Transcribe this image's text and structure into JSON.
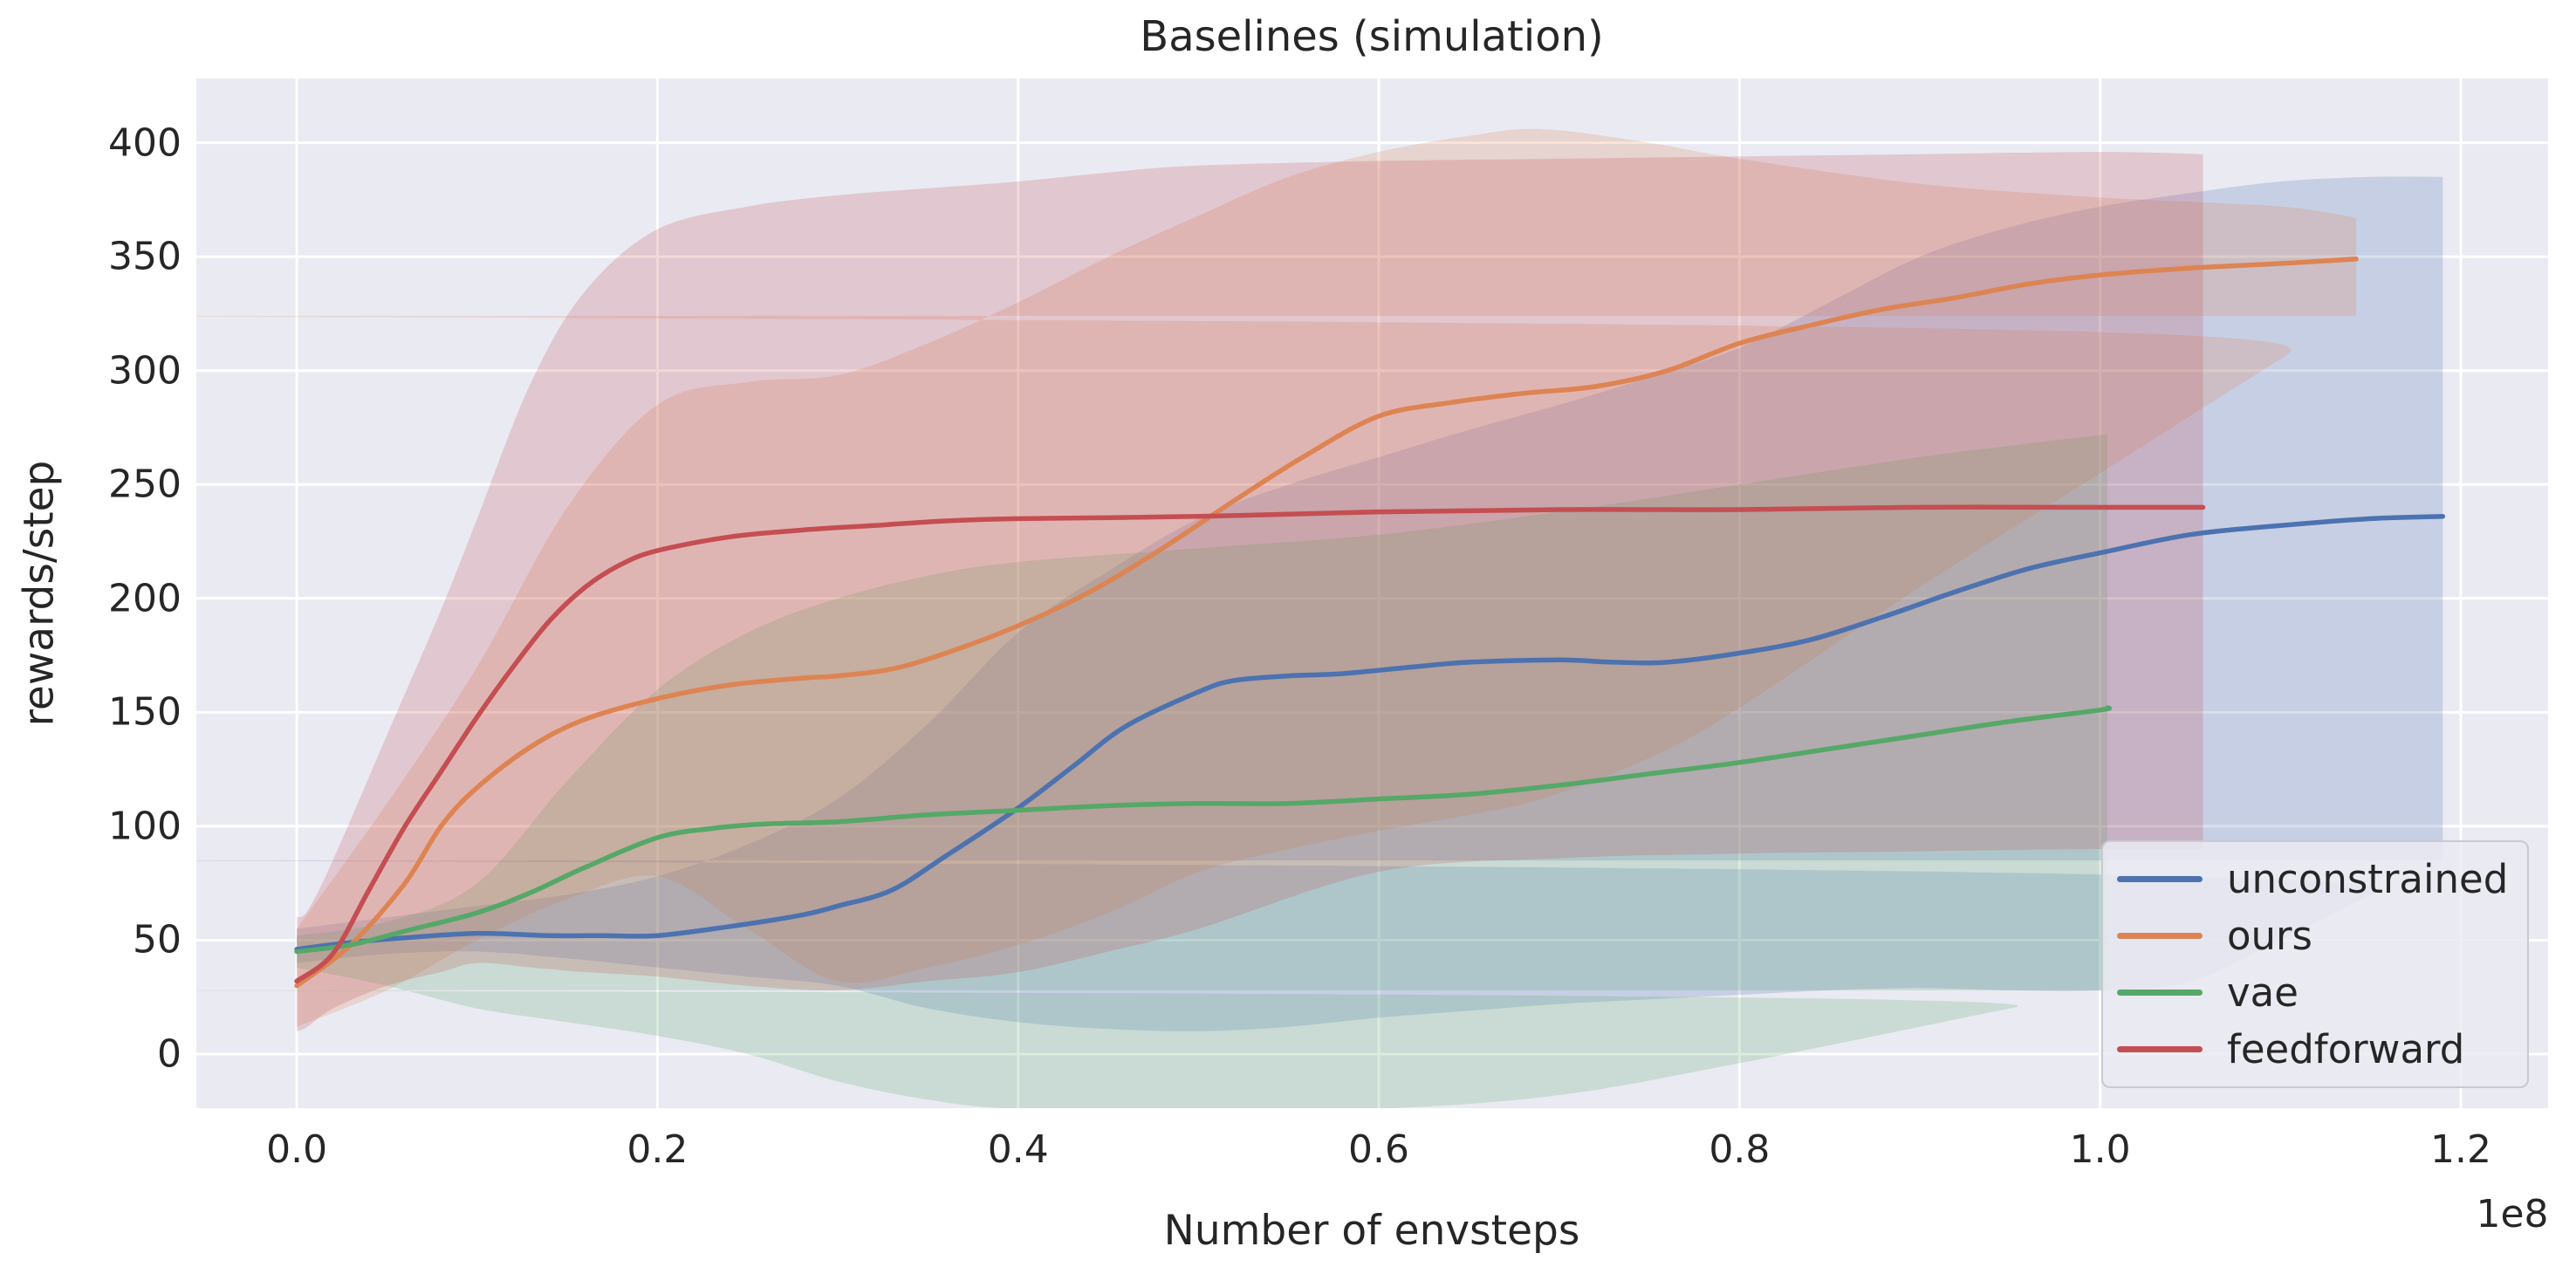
{
  "figure": {
    "title": "Baselines (simulation)",
    "background": "#ffffff"
  },
  "axes": {
    "xlabel": "Number of envsteps",
    "ylabel": "rewards/step",
    "offset_text": "1e8",
    "background_color": "#eaeaf2",
    "grid_color": "#ffffff",
    "text_color": "#262626",
    "xtick_labels": [
      "0.0",
      "0.2",
      "0.4",
      "0.6",
      "0.8",
      "1.0",
      "1.2"
    ],
    "ytick_labels": [
      "0",
      "50",
      "100",
      "150",
      "200",
      "250",
      "300",
      "350",
      "400"
    ]
  },
  "legend": {
    "position": "lower right",
    "items": [
      {
        "label": "unconstrained",
        "color": "#4c72b0"
      },
      {
        "label": "ours",
        "color": "#dd8452"
      },
      {
        "label": "vae",
        "color": "#55a868"
      },
      {
        "label": "feedforward",
        "color": "#c44e52"
      }
    ]
  },
  "chart_data": {
    "type": "line",
    "title": "Baselines (simulation)",
    "xlabel": "Number of envsteps",
    "ylabel": "rewards/step",
    "x_scale_factor": "1e8",
    "xlim": [
      -0.0557,
      1.2484
    ],
    "ylim": [
      -23.75,
      428.2
    ],
    "xticks": [
      0.0,
      0.2,
      0.4,
      0.6,
      0.8,
      1.0,
      1.2
    ],
    "yticks": [
      0,
      50,
      100,
      150,
      200,
      250,
      300,
      350,
      400
    ],
    "grid": true,
    "band_alpha": 0.22,
    "line_width": 5.5,
    "series": [
      {
        "name": "unconstrained",
        "color": "#4c72b0",
        "points": [
          [
            0,
            46
          ],
          [
            0.03,
            49
          ],
          [
            0.06,
            51
          ],
          [
            0.1,
            53
          ],
          [
            0.14,
            52
          ],
          [
            0.17,
            52
          ],
          [
            0.2,
            52
          ],
          [
            0.24,
            56
          ],
          [
            0.28,
            61
          ],
          [
            0.3,
            65
          ],
          [
            0.33,
            72
          ],
          [
            0.36,
            87
          ],
          [
            0.4,
            108
          ],
          [
            0.43,
            126
          ],
          [
            0.46,
            144
          ],
          [
            0.5,
            159
          ],
          [
            0.52,
            164
          ],
          [
            0.55,
            166
          ],
          [
            0.58,
            167
          ],
          [
            0.62,
            170
          ],
          [
            0.65,
            172
          ],
          [
            0.7,
            173
          ],
          [
            0.73,
            172
          ],
          [
            0.76,
            172
          ],
          [
            0.8,
            176
          ],
          [
            0.84,
            182
          ],
          [
            0.88,
            192
          ],
          [
            0.92,
            203
          ],
          [
            0.96,
            213
          ],
          [
            1.0,
            220
          ],
          [
            1.05,
            228
          ],
          [
            1.1,
            232
          ],
          [
            1.15,
            235
          ],
          [
            1.19,
            236
          ]
        ],
        "band": {
          "x": [
            0,
            0.05,
            0.1,
            0.15,
            0.2,
            0.25,
            0.3,
            0.35,
            0.4,
            0.45,
            0.5,
            0.55,
            0.6,
            0.65,
            0.7,
            0.75,
            0.8,
            0.85,
            0.9,
            0.95,
            1.0,
            1.05,
            1.1,
            1.15,
            1.19
          ],
          "upper": [
            55,
            60,
            65,
            70,
            78,
            92,
            112,
            145,
            185,
            212,
            235,
            250,
            262,
            274,
            285,
            297,
            310,
            330,
            350,
            363,
            372,
            378,
            383,
            385,
            385
          ],
          "lower": [
            40,
            44,
            45,
            42,
            38,
            34,
            30,
            20,
            14,
            11,
            10,
            12,
            16,
            19,
            22,
            24,
            26,
            28,
            29,
            28,
            28,
            32,
            50,
            70,
            85
          ]
        }
      },
      {
        "name": "ours",
        "color": "#dd8452",
        "points": [
          [
            0,
            30
          ],
          [
            0.03,
            48
          ],
          [
            0.06,
            75
          ],
          [
            0.08,
            100
          ],
          [
            0.1,
            117
          ],
          [
            0.13,
            135
          ],
          [
            0.16,
            147
          ],
          [
            0.2,
            156
          ],
          [
            0.24,
            162
          ],
          [
            0.28,
            165
          ],
          [
            0.3,
            166
          ],
          [
            0.33,
            169
          ],
          [
            0.36,
            176
          ],
          [
            0.4,
            188
          ],
          [
            0.44,
            203
          ],
          [
            0.48,
            222
          ],
          [
            0.52,
            243
          ],
          [
            0.56,
            263
          ],
          [
            0.6,
            280
          ],
          [
            0.64,
            286
          ],
          [
            0.68,
            290
          ],
          [
            0.72,
            293
          ],
          [
            0.76,
            300
          ],
          [
            0.8,
            312
          ],
          [
            0.84,
            320
          ],
          [
            0.88,
            327
          ],
          [
            0.92,
            332
          ],
          [
            0.96,
            338
          ],
          [
            1.0,
            342
          ],
          [
            1.05,
            345
          ],
          [
            1.1,
            347
          ],
          [
            1.142,
            349
          ]
        ],
        "band": {
          "x": [
            0,
            0.05,
            0.1,
            0.15,
            0.2,
            0.25,
            0.3,
            0.35,
            0.4,
            0.45,
            0.5,
            0.55,
            0.6,
            0.65,
            0.69,
            0.75,
            0.8,
            0.9,
            1.0,
            1.1,
            1.142
          ],
          "upper": [
            55,
            110,
            170,
            240,
            285,
            295,
            298,
            312,
            330,
            350,
            368,
            385,
            396,
            403,
            406,
            400,
            393,
            382,
            376,
            372,
            367
          ],
          "lower": [
            12,
            28,
            50,
            68,
            78,
            55,
            32,
            38,
            48,
            62,
            80,
            90,
            98,
            105,
            112,
            130,
            152,
            205,
            255,
            305,
            324
          ]
        }
      },
      {
        "name": "vae",
        "color": "#55a868",
        "points": [
          [
            0,
            45
          ],
          [
            0.03,
            48
          ],
          [
            0.06,
            54
          ],
          [
            0.1,
            62
          ],
          [
            0.13,
            71
          ],
          [
            0.16,
            82
          ],
          [
            0.2,
            95
          ],
          [
            0.23,
            99
          ],
          [
            0.26,
            101
          ],
          [
            0.3,
            102
          ],
          [
            0.35,
            105
          ],
          [
            0.4,
            107
          ],
          [
            0.45,
            109
          ],
          [
            0.5,
            110
          ],
          [
            0.55,
            110
          ],
          [
            0.6,
            112
          ],
          [
            0.65,
            114
          ],
          [
            0.7,
            118
          ],
          [
            0.75,
            123
          ],
          [
            0.8,
            128
          ],
          [
            0.85,
            134
          ],
          [
            0.9,
            140
          ],
          [
            0.95,
            146
          ],
          [
            1.0,
            151
          ],
          [
            1.004,
            152
          ]
        ],
        "band": {
          "x": [
            0,
            0.05,
            0.1,
            0.15,
            0.2,
            0.25,
            0.3,
            0.35,
            0.4,
            0.5,
            0.6,
            0.7,
            0.8,
            0.9,
            0.95,
            1.004
          ],
          "upper": [
            52,
            58,
            75,
            120,
            160,
            185,
            200,
            210,
            216,
            222,
            228,
            238,
            250,
            262,
            267,
            272
          ],
          "lower": [
            38,
            30,
            20,
            14,
            8,
            0,
            -12,
            -20,
            -24,
            -24,
            -24,
            -18,
            -4,
            12,
            20,
            28
          ]
        }
      },
      {
        "name": "feedforward",
        "color": "#c44e52",
        "points": [
          [
            0,
            32
          ],
          [
            0.02,
            44
          ],
          [
            0.04,
            72
          ],
          [
            0.06,
            100
          ],
          [
            0.08,
            124
          ],
          [
            0.1,
            148
          ],
          [
            0.12,
            170
          ],
          [
            0.14,
            190
          ],
          [
            0.16,
            205
          ],
          [
            0.18,
            215
          ],
          [
            0.2,
            221
          ],
          [
            0.24,
            227
          ],
          [
            0.28,
            230
          ],
          [
            0.32,
            232
          ],
          [
            0.36,
            234
          ],
          [
            0.4,
            235
          ],
          [
            0.5,
            236
          ],
          [
            0.6,
            238
          ],
          [
            0.7,
            239
          ],
          [
            0.8,
            239
          ],
          [
            0.9,
            240
          ],
          [
            1.0,
            240
          ],
          [
            1.057,
            240
          ]
        ],
        "band": {
          "x": [
            0,
            0.006,
            0.02,
            0.05,
            0.08,
            0.1,
            0.13,
            0.16,
            0.2,
            0.25,
            0.3,
            0.35,
            0.4,
            0.45,
            0.5,
            0.6,
            0.7,
            0.8,
            0.9,
            1.0,
            1.057
          ],
          "upper": [
            60,
            63,
            85,
            140,
            195,
            235,
            295,
            335,
            362,
            372,
            377,
            380,
            383,
            387,
            390,
            392,
            393,
            394,
            395,
            396,
            395
          ],
          "lower": [
            10,
            12,
            20,
            30,
            36,
            40,
            38,
            36,
            34,
            30,
            28,
            32,
            36,
            45,
            55,
            80,
            86,
            88,
            89,
            90,
            90
          ]
        }
      }
    ]
  }
}
